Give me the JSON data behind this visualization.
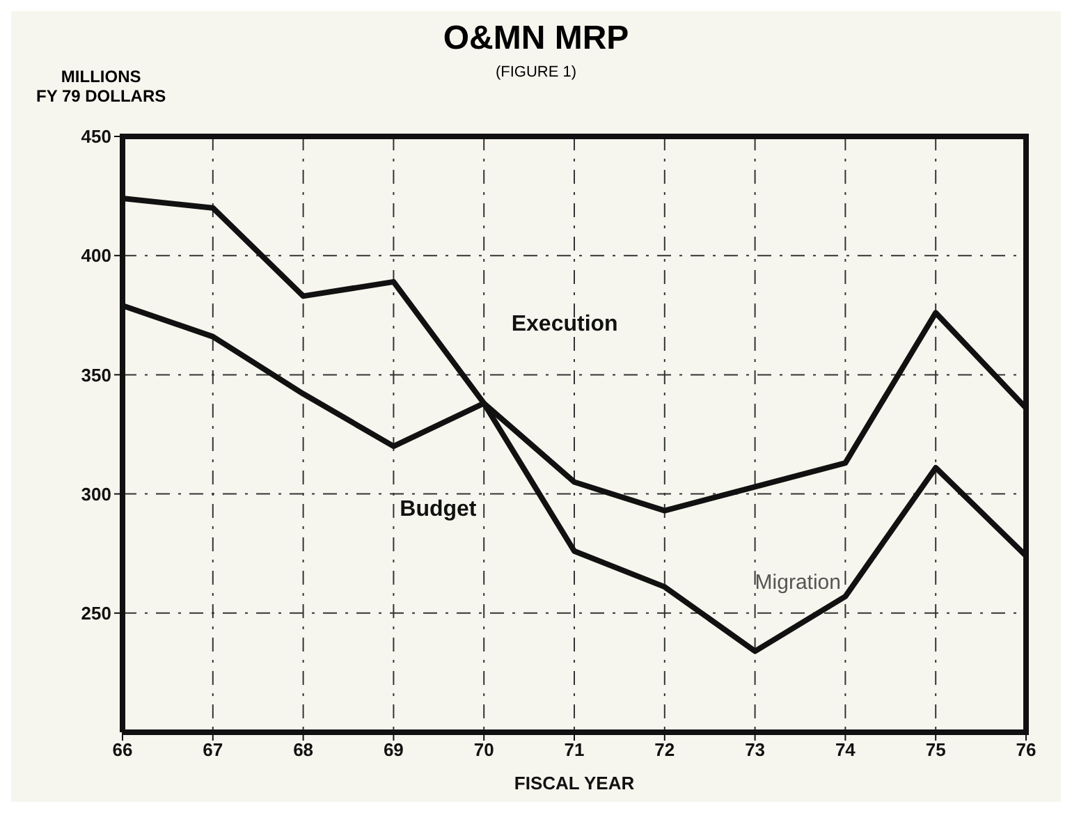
{
  "chart_data": {
    "type": "line",
    "title": "O&MN MRP",
    "subtitle": "(FIGURE 1)",
    "ylabel": "MILLIONS\nFY 79 DOLLARS",
    "xlabel": "FISCAL YEAR",
    "x": [
      66,
      67,
      68,
      69,
      70,
      71,
      72,
      73,
      74,
      75,
      76
    ],
    "xlim": [
      66,
      76
    ],
    "xticks": [
      66,
      67,
      68,
      69,
      70,
      71,
      72,
      73,
      74,
      75,
      76
    ],
    "ylim": [
      200,
      450
    ],
    "yticks": [
      250,
      300,
      350,
      400,
      450
    ],
    "grid": true,
    "marker": "none",
    "line_style": "solid",
    "series": [
      {
        "name": "Execution",
        "color": "#111111",
        "values": [
          424,
          420,
          383,
          389,
          338,
          276,
          261,
          234,
          257,
          311,
          274
        ]
      },
      {
        "name": "Budget",
        "color": "#111111",
        "values": [
          379,
          366,
          342,
          320,
          338,
          305,
          293,
          303,
          313,
          376,
          336
        ]
      }
    ],
    "annotations": [
      "Migration"
    ]
  }
}
